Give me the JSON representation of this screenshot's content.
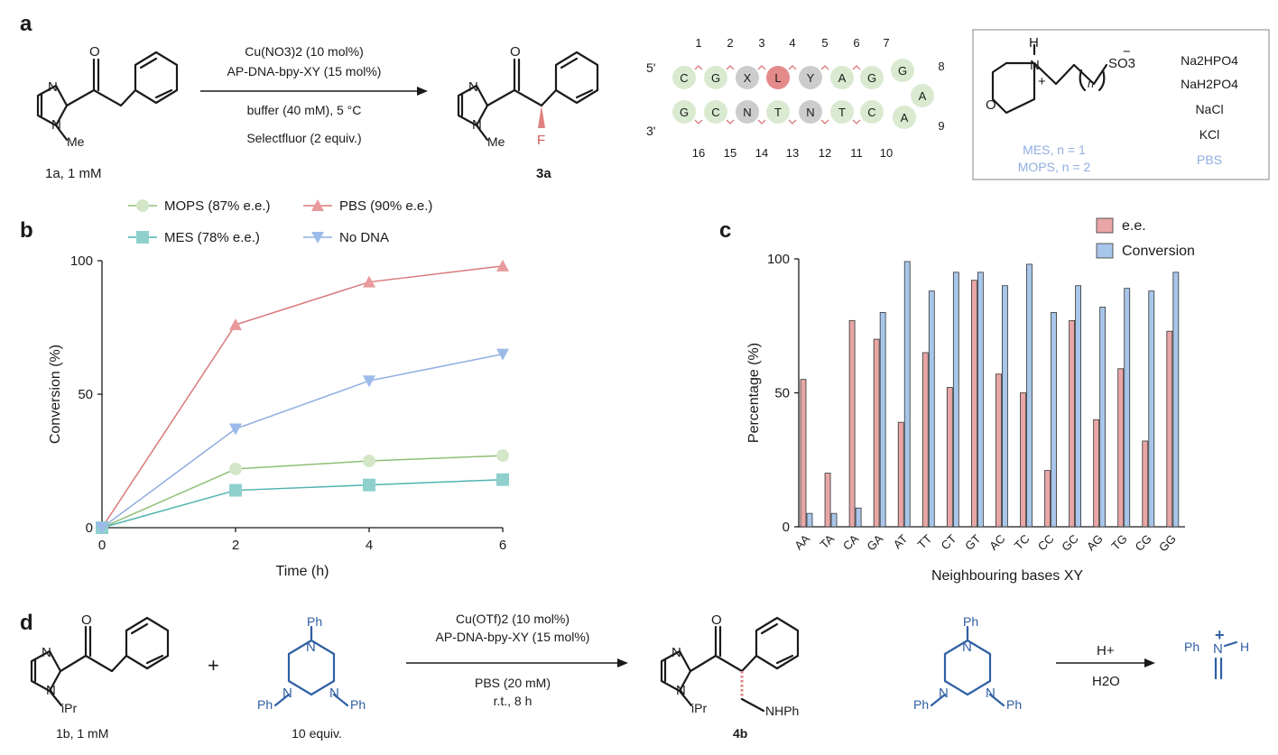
{
  "panels": {
    "a": "a",
    "b": "b",
    "c": "c",
    "d": "d"
  },
  "colors": {
    "mops": "#8fbf77",
    "pbs": "#d9797c",
    "mes": "#4fb3b0",
    "nodna": "#8faee0",
    "ee": "#e9a6a6",
    "conversion": "#a8c6ea",
    "bead_green": "#d9ead0",
    "bead_grey": "#cccccc",
    "bead_red": "#e58a8a",
    "mol_blue": "#2e5fa3"
  },
  "panel_a": {
    "reagents": [
      "Cu(NO3)2 (10 mol%)",
      "AP-DNA-bpy-XY (15 mol%)",
      "buffer (40 mM), 5 °C",
      "Selectfluor (2 equiv.)"
    ],
    "substrate_label": "1a, 1 mM",
    "product_label": "3a",
    "atoms": {
      "O": "O",
      "N": "N",
      "Me": "Me",
      "F": "F"
    },
    "dna": {
      "five_prime": "5'",
      "three_prime": "3'",
      "top_strand": [
        "C",
        "G",
        "X",
        "L",
        "Y",
        "A",
        "G",
        "G"
      ],
      "loop": [
        "A",
        "A"
      ],
      "bottom_strand": [
        "G",
        "C",
        "N",
        "T",
        "N",
        "T",
        "C"
      ],
      "top_numbers": [
        "1",
        "2",
        "3",
        "4",
        "5",
        "6",
        "7",
        "8"
      ],
      "loop_number": "9",
      "bottom_numbers": [
        "16",
        "15",
        "14",
        "13",
        "12",
        "11",
        "10"
      ]
    },
    "buffer_box": {
      "salts": [
        "Na2HPO4",
        "NaH2PO4",
        "NaCl",
        "KCl",
        "PBS"
      ],
      "mes": "MES, n = 1",
      "mops": "MOPS, n = 2",
      "atoms": {
        "H": "H",
        "N": "N",
        "plus": "+",
        "O": "O",
        "so3": "SO3",
        "minus": "−",
        "n": "n"
      }
    }
  },
  "chart_data": [
    {
      "type": "line",
      "panel": "b",
      "xlabel": "Time (h)",
      "ylabel": "Conversion (%)",
      "x": [
        0,
        2,
        4,
        6
      ],
      "xlim": [
        0,
        6
      ],
      "ylim": [
        0,
        100
      ],
      "xticks": [
        "0",
        "2",
        "4",
        "6"
      ],
      "yticks": [
        "0",
        "50",
        "100"
      ],
      "series": [
        {
          "name": "MOPS (87% e.e.)",
          "marker": "circle",
          "values": [
            0,
            22,
            25,
            27
          ]
        },
        {
          "name": "PBS (90% e.e.)",
          "marker": "triangle-up",
          "values": [
            0,
            76,
            92,
            98
          ]
        },
        {
          "name": "MES (78% e.e.)",
          "marker": "square",
          "values": [
            0,
            14,
            16,
            18
          ]
        },
        {
          "name": "No DNA",
          "marker": "triangle-down",
          "values": [
            0,
            37,
            55,
            65
          ]
        }
      ]
    },
    {
      "type": "bar",
      "panel": "c",
      "xlabel": "Neighbouring bases XY",
      "ylabel": "Percentage (%)",
      "ylim": [
        0,
        100
      ],
      "yticks": [
        "0",
        "50",
        "100"
      ],
      "categories": [
        "AA",
        "TA",
        "CA",
        "GA",
        "AT",
        "TT",
        "CT",
        "GT",
        "AC",
        "TC",
        "CC",
        "GC",
        "AG",
        "TG",
        "CG",
        "GG"
      ],
      "series": [
        {
          "name": "e.e.",
          "values": [
            55,
            20,
            77,
            70,
            39,
            65,
            52,
            92,
            57,
            50,
            21,
            77,
            40,
            59,
            32,
            73
          ]
        },
        {
          "name": "Conversion",
          "values": [
            5,
            5,
            7,
            80,
            99,
            88,
            95,
            95,
            90,
            98,
            80,
            90,
            82,
            89,
            88,
            95
          ]
        }
      ]
    }
  ],
  "panel_d": {
    "reagents": [
      "Cu(OTf)2 (10 mol%)",
      "AP-DNA-bpy-XY (15 mol%)",
      "PBS (20 mM)",
      "r.t., 8 h"
    ],
    "substrate_label": "1b, 1 mM",
    "plus": "+",
    "equiv_label": "10 equiv.",
    "product_label": "4b",
    "acid": "H+",
    "water": "H2O",
    "atoms": {
      "O": "O",
      "N": "N",
      "iPr": "iPr",
      "Ph": "Ph",
      "NHPh": "NHPh",
      "H": "H",
      "plus": "+"
    }
  }
}
